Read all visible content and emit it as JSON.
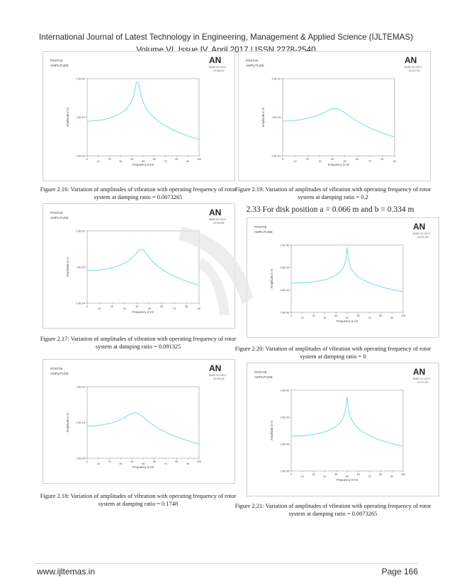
{
  "header": {
    "journal": "International Journal of Latest Technology in Engineering, Management & Applied Science (IJLTEMAS)",
    "volume": "Volume VI, Issue IV, April 2017 | ISSN 2278-2540"
  },
  "section_title": "2.33 For disk position a = 0.066 m and b = 0.334 m",
  "figures": [
    {
      "caption": "Figure 2.16: Variation of amplitudes of vibration with operating frequency of rotor system at damping ratio = 0.0073265"
    },
    {
      "caption": "Figure 2.17: Variation of amplitudes of vibration with operating frequency of rotor system at damping ratio = 0.091325"
    },
    {
      "caption": "Figure 2.18: Variation of amplitudes of vibration with operating frequency of rotor system at damping ratio = 0.1748"
    },
    {
      "caption": "Figure 2.19: Variation of amplitudes of vibration with operating frequency of rotor system at damping ratio = 0.2"
    },
    {
      "caption": "Figure 2.20: Variation of amplitudes of vibration with operating frequency of rotor system at damping ratio = 0"
    },
    {
      "caption": "Figure 2.21: Variation of amplitudes of vibration with operating frequency of rotor system at damping ratio = 0.0073265"
    }
  ],
  "chart_data": [
    {
      "type": "line",
      "logo": "AN",
      "tag": "POST26",
      "subtag": "AMPLITUDE",
      "xlabel": "Frequency in Hz",
      "ylabel": "Amplitude in m",
      "xlim": [
        0,
        100
      ],
      "xticks": [
        0,
        10,
        20,
        30,
        40,
        50,
        60,
        70,
        80,
        90,
        100
      ],
      "yticks": [
        "1.0E-04",
        "1.0E-03",
        "1.0E-02"
      ],
      "date": "MAR 29 2017",
      "time": "19:59:32",
      "peak_x": 45,
      "damping": 0.0073265
    },
    {
      "type": "line",
      "logo": "AN",
      "tag": "POST26",
      "subtag": "AMPLITUDE",
      "xlabel": "Frequency in Hz",
      "ylabel": "Amplitude in m",
      "xlim": [
        0,
        90
      ],
      "xticks": [
        0,
        10,
        20,
        30,
        40,
        50,
        60,
        70,
        80,
        90
      ],
      "yticks": [
        "1.0E-04",
        "1.0E-03",
        "1.0E-02"
      ],
      "date": "MAR 29 2017",
      "time": "20:00:54",
      "peak_x": 44,
      "damping": 0.091325
    },
    {
      "type": "line",
      "logo": "AN",
      "tag": "POST26",
      "subtag": "AMPLITUDE",
      "xlabel": "Frequency in Hz",
      "ylabel": "Amplitude in m",
      "xlim": [
        0,
        100
      ],
      "xticks": [
        0,
        10,
        20,
        30,
        40,
        50,
        60,
        70,
        80,
        90,
        100
      ],
      "yticks": [
        "1.0E-04",
        "1.0E-03",
        "1.0E-02"
      ],
      "date": "MAR 29 2017",
      "time": "20:00:44",
      "peak_x": 44,
      "damping": 0.1748
    },
    {
      "type": "line",
      "logo": "AN",
      "tag": "POST26",
      "subtag": "AMPLITUDE",
      "xlabel": "Frequency in Hz",
      "ylabel": "Amplitude in m",
      "xlim": [
        0,
        90
      ],
      "xticks": [
        0,
        10,
        20,
        30,
        40,
        50,
        60,
        70,
        80,
        90
      ],
      "yticks": [
        "1.0E-04",
        "1.0E-03",
        "1.0E-02"
      ],
      "date": "MAR 29 2017",
      "time": "20:02:28",
      "peak_x": 44,
      "damping": 0.2
    },
    {
      "type": "line",
      "logo": "AN",
      "tag": "POST26",
      "subtag": "AMPLITUDE",
      "xlabel": "Frequency in Hz",
      "ylabel": "Amplitude in m",
      "xlim": [
        0,
        100
      ],
      "xticks": [
        0,
        10,
        20,
        30,
        40,
        50,
        60,
        70,
        80,
        90,
        100
      ],
      "yticks": [
        "1.0E-05",
        "1.0E-04",
        "1.0E-03",
        "1.0E-02"
      ],
      "date": "MAR 12 2017",
      "time": "22:01:05",
      "peak_x": 50,
      "damping": 0
    },
    {
      "type": "line",
      "logo": "AN",
      "tag": "POST26",
      "subtag": "AMPLITUDE",
      "xlabel": "Frequency in Hz",
      "ylabel": "Amplitude in m",
      "xlim": [
        0,
        100
      ],
      "xticks": [
        0,
        10,
        20,
        30,
        40,
        50,
        60,
        70,
        80,
        90,
        100
      ],
      "yticks": [
        "1.0E-05",
        "1.0E-04",
        "1.0E-03",
        "1.0E-02"
      ],
      "date": "MAR 12 2017",
      "time": "22:07:04",
      "peak_x": 50,
      "damping": 0.0073265
    }
  ],
  "footer": {
    "website": "www.ijltemas.in",
    "page": "Page 166"
  }
}
